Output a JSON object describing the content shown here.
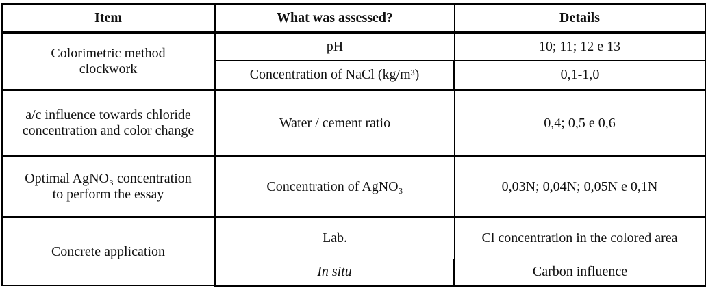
{
  "table": {
    "header": [
      "Item",
      "What was assessed?",
      "Details"
    ],
    "groups": [
      {
        "item": "Colorimetric method clockwork",
        "rows": [
          [
            "pH",
            "10; 11; 12 e 13"
          ],
          [
            "Concentration of NaCl (kg/m³)",
            "0,1-1,0"
          ]
        ]
      },
      {
        "item": "a/c influence towards chloride concentration and color change",
        "rows": [
          [
            "Water / cement ratio",
            "0,4; 0,5 e 0,6"
          ]
        ]
      },
      {
        "item": "Optimal AgNO₃ concentration to perform the essay",
        "rows": [
          [
            "Concentration of AgNO₃",
            "0,03N; 0,04N; 0,05N e 0,1N"
          ]
        ]
      },
      {
        "item": "Concrete application",
        "rows": [
          [
            "Lab.",
            "Cl concentration in the colored area"
          ],
          [
            "In situ",
            "Carbon influence"
          ]
        ]
      }
    ]
  }
}
